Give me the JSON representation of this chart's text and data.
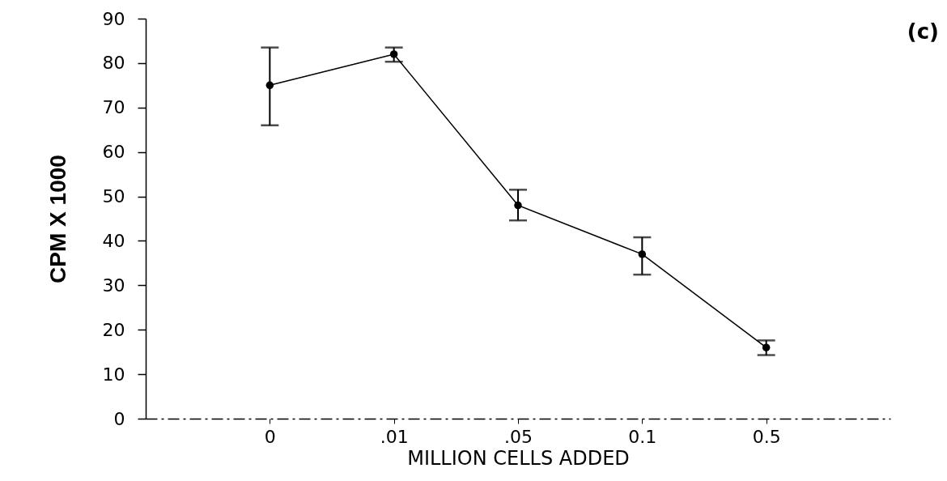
{
  "chart_data": {
    "type": "line",
    "title": "(c)",
    "xlabel": "MILLION CELLS ADDED",
    "ylabel": "CPM X 1000",
    "categories": [
      "0",
      ".01",
      ".05",
      "0.1",
      "0.5"
    ],
    "values": [
      75,
      82,
      48,
      37,
      16
    ],
    "color": "#000000",
    "errors": [
      [
        66,
        83.5
      ],
      [
        80.3,
        83.5
      ],
      [
        44.6,
        51.5
      ],
      [
        32.4,
        40.8
      ],
      [
        14.3,
        17.6
      ]
    ],
    "ylim": [
      0,
      90
    ],
    "yticks": [
      0,
      10,
      20,
      30,
      40,
      50,
      60,
      70,
      80,
      90
    ],
    "marker": "circle",
    "line_style": "solid"
  }
}
